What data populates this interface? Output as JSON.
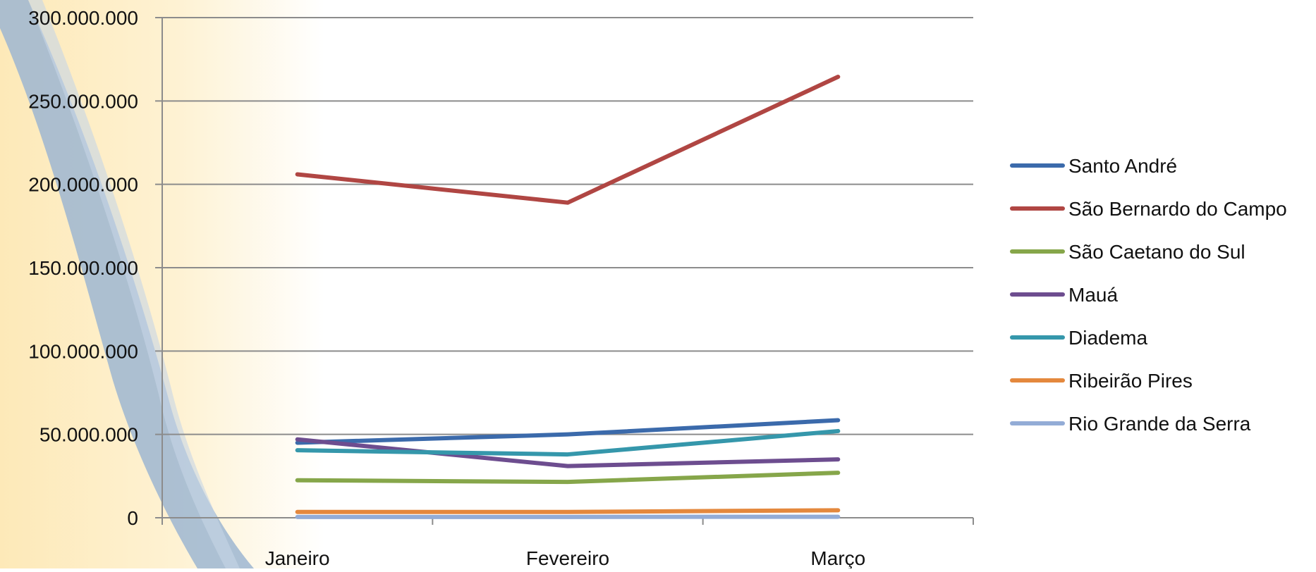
{
  "chart_data": {
    "type": "line",
    "categories": [
      "Janeiro",
      "Fevereiro",
      "Março"
    ],
    "ylim": [
      0,
      300000000
    ],
    "yticks": [
      "0",
      "50.000.000",
      "100.000.000",
      "150.000.000",
      "200.000.000",
      "250.000.000",
      "300.000.000"
    ],
    "ytick_values": [
      0,
      50000000,
      100000000,
      150000000,
      200000000,
      250000000,
      300000000
    ],
    "grid": true,
    "legend_position": "right",
    "series": [
      {
        "name": "Santo André",
        "color": "#3b6aab",
        "values": [
          45000000,
          50000000,
          58500000
        ]
      },
      {
        "name": "São Bernardo do Campo",
        "color": "#b04643",
        "values": [
          206000000,
          189000000,
          264500000
        ]
      },
      {
        "name": "São Caetano do Sul",
        "color": "#86a64a",
        "values": [
          22500000,
          21500000,
          27000000
        ]
      },
      {
        "name": "Mauá",
        "color": "#6d4d8f",
        "values": [
          47000000,
          31000000,
          35000000
        ]
      },
      {
        "name": "Diadema",
        "color": "#3597ab",
        "values": [
          40500000,
          38000000,
          52000000
        ]
      },
      {
        "name": "Ribeirão Pires",
        "color": "#e4883d",
        "values": [
          3500000,
          3500000,
          4500000
        ]
      },
      {
        "name": "Rio Grande da Serra",
        "color": "#93acd6",
        "values": [
          500000,
          500000,
          600000
        ]
      }
    ]
  }
}
